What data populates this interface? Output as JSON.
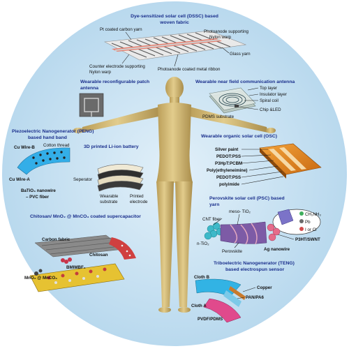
{
  "diagram": {
    "background_color": "#cfe6f5",
    "body_color": "#d9c27e",
    "sections": {
      "dssc": {
        "title_line1": "Dye-sensitized solar cell (DSSC) based",
        "title_line2": "woven fabric",
        "labels": {
          "pt_yarn": "Pt coated carbon yarn",
          "photoanode_warp_1": "Photoanode supporting",
          "photoanode_warp_2": "Nylon warp",
          "glass_yarn": "Glass yarn",
          "counter_warp_1": "Counter electrode supporting",
          "counter_warp_2": "Nylon warp",
          "ribbon": "Photoanode coated metal ribbon"
        }
      },
      "patch_antenna": {
        "title_line1": "Wearable reconfigurable patch",
        "title_line2": "antenna"
      },
      "nfc_antenna": {
        "title": "Wearable near field communication antenna",
        "labels": {
          "top": "Top layer",
          "insulator": "Insulator layer",
          "coil": "Spiral coil",
          "chip": "Chip &LED",
          "substrate": "PDMS substrate"
        }
      },
      "peng": {
        "title_line1": "Piezoelectric Nanogenerator (PENG)",
        "title_line2": "based hand band",
        "labels": {
          "wire_b": "Cu Wire-B",
          "thread": "Cotton thread",
          "wire_a": "Cu Wire-A",
          "nanowire_1": "BaTiO₃ nanowire",
          "nanowire_2": "– PVC fiber"
        }
      },
      "battery": {
        "title": "3D printed Li-ion battery",
        "labels": {
          "separator": "Seperator",
          "substrate_1": "Wearable",
          "substrate_2": "substrate",
          "electrode_1": "Printed",
          "electrode_2": "electrode"
        }
      },
      "osc": {
        "title": "Wearable organic solar cell (OSC)",
        "labels": {
          "silver": "Silver paint",
          "pedot1": "PEDOT:PSS",
          "p3hpt": "P3HpT:PCBM",
          "pei": "Poly(ethyleneimine)",
          "pedot2": "PEDOT:PSS",
          "polyimide": "polyimide"
        }
      },
      "psc": {
        "title_line1": "Perovskite solar cell (PSC) based",
        "title_line2": "yarn",
        "labels": {
          "cnt": "CNT fiber",
          "meso": "meso- TiO₂",
          "ch3nh3": "CH₃NH₃",
          "pb": "Pb",
          "halide": "I or Cl",
          "p3ht": "P3HT/SWNT",
          "ntio2": "n-TiO₂",
          "perovskite": "Perovskite",
          "ag": "Ag nanowire"
        }
      },
      "supercap": {
        "title": "Chitosan/ MnO₂ @ MnCO₃ coated supercapacitor",
        "labels": {
          "carbon": "Carbon fabric",
          "chitosan": "Chitosan",
          "ionic": "BMIMBF₄",
          "mno2": "MnO₂ @ MnCO₃"
        }
      },
      "teng": {
        "title_line1": "Triboelectric Nanogenerator (TENG)",
        "title_line2": "based electrospun sensor",
        "labels": {
          "cloth_b": "Cloth B",
          "copper": "Copper",
          "pan": "PAN/PA6",
          "cloth_a": "Cloth A",
          "pvdf": "PVDF/PDMS"
        }
      }
    }
  }
}
